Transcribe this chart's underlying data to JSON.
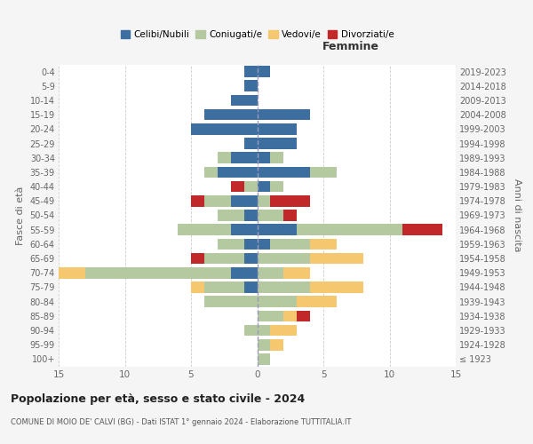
{
  "age_groups": [
    "100+",
    "95-99",
    "90-94",
    "85-89",
    "80-84",
    "75-79",
    "70-74",
    "65-69",
    "60-64",
    "55-59",
    "50-54",
    "45-49",
    "40-44",
    "35-39",
    "30-34",
    "25-29",
    "20-24",
    "15-19",
    "10-14",
    "5-9",
    "0-4"
  ],
  "birth_years": [
    "≤ 1923",
    "1924-1928",
    "1929-1933",
    "1934-1938",
    "1939-1943",
    "1944-1948",
    "1949-1953",
    "1954-1958",
    "1959-1963",
    "1964-1968",
    "1969-1973",
    "1974-1978",
    "1979-1983",
    "1984-1988",
    "1989-1993",
    "1994-1998",
    "1999-2003",
    "2004-2008",
    "2009-2013",
    "2014-2018",
    "2019-2023"
  ],
  "male": {
    "celibi": [
      0,
      0,
      0,
      0,
      0,
      1,
      2,
      1,
      1,
      2,
      1,
      2,
      0,
      3,
      2,
      1,
      5,
      4,
      2,
      1,
      1
    ],
    "coniugati": [
      0,
      0,
      1,
      0,
      4,
      3,
      11,
      3,
      2,
      4,
      2,
      2,
      1,
      1,
      1,
      0,
      0,
      0,
      0,
      0,
      0
    ],
    "vedovi": [
      0,
      0,
      0,
      0,
      0,
      1,
      2,
      0,
      0,
      0,
      0,
      0,
      0,
      0,
      0,
      0,
      0,
      0,
      0,
      0,
      0
    ],
    "divorziati": [
      0,
      0,
      0,
      0,
      0,
      0,
      0,
      1,
      0,
      0,
      0,
      1,
      1,
      0,
      0,
      0,
      0,
      0,
      0,
      0,
      0
    ]
  },
  "female": {
    "nubili": [
      0,
      0,
      0,
      0,
      0,
      0,
      0,
      0,
      1,
      3,
      0,
      0,
      1,
      4,
      1,
      3,
      3,
      4,
      0,
      0,
      1
    ],
    "coniugate": [
      1,
      1,
      1,
      2,
      3,
      4,
      2,
      4,
      3,
      8,
      2,
      1,
      1,
      2,
      1,
      0,
      0,
      0,
      0,
      0,
      0
    ],
    "vedove": [
      0,
      1,
      2,
      1,
      3,
      4,
      2,
      4,
      2,
      0,
      0,
      0,
      0,
      0,
      0,
      0,
      0,
      0,
      0,
      0,
      0
    ],
    "divorziate": [
      0,
      0,
      0,
      1,
      0,
      0,
      0,
      0,
      0,
      3,
      1,
      3,
      0,
      0,
      0,
      0,
      0,
      0,
      0,
      0,
      0
    ]
  },
  "colors": {
    "celibi": "#3d6ea0",
    "coniugati": "#b5c9a0",
    "vedovi": "#f5c870",
    "divorziati": "#c0282a"
  },
  "xlim": 15,
  "title": "Popolazione per età, sesso e stato civile - 2024",
  "subtitle": "COMUNE DI MOIO DE' CALVI (BG) - Dati ISTAT 1° gennaio 2024 - Elaborazione TUTTITALIA.IT",
  "ylabel_left": "Fasce di età",
  "ylabel_right": "Anni di nascita",
  "xlabel_female": "Femmine",
  "bg_color": "#f5f5f5",
  "plot_bg": "#ffffff",
  "legend_labels": [
    "Celibi/Nubili",
    "Coniugati/e",
    "Vedovi/e",
    "Divorziati/e"
  ]
}
